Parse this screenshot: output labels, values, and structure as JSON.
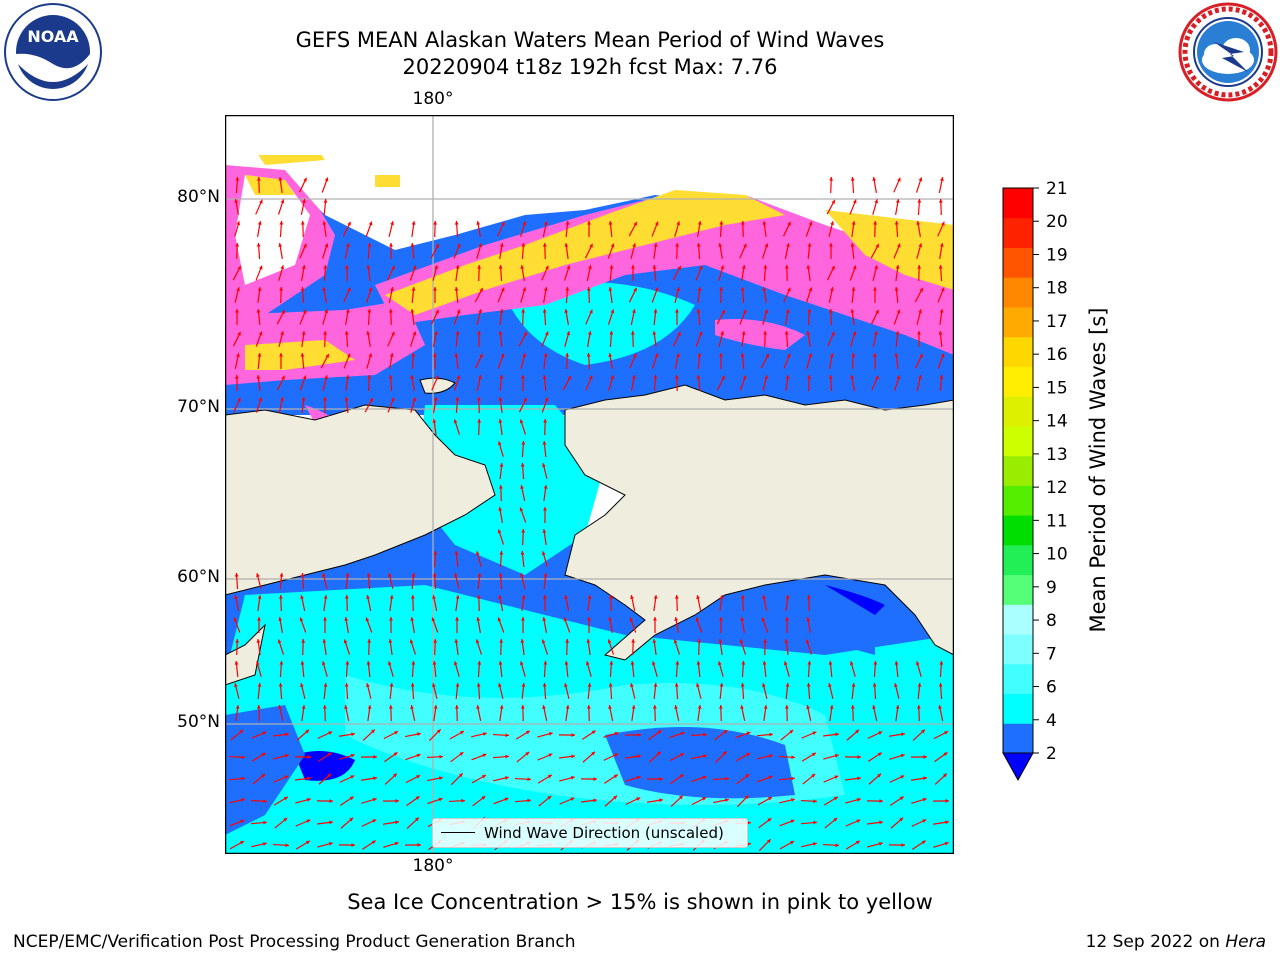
{
  "header": {
    "title_line1": "GEFS MEAN Alaskan Waters Mean Period of Wind Waves",
    "title_line2": "20220904 t18z 192h fcst   Max: 7.76"
  },
  "logos": {
    "left": {
      "icon": "noaa-logo-icon",
      "text": "NOAA"
    },
    "right": {
      "icon": "nws-logo-icon"
    }
  },
  "map": {
    "lat_labels": [
      "80°N",
      "70°N",
      "60°N",
      "50°N"
    ],
    "lon_label_top": "180°",
    "lon_label_bottom": "180°",
    "legend_label": "Wind Wave Direction (unscaled)",
    "colors": {
      "land": "#efedde",
      "coast": "#000000",
      "grid": "#b0b0b0",
      "arrow": "#ff0000"
    }
  },
  "colorbar": {
    "title": "Mean Period of Wind Waves [s]",
    "ticks": [
      "2",
      "4",
      "6",
      "7",
      "8",
      "9",
      "10",
      "11",
      "12",
      "13",
      "14",
      "15",
      "16",
      "17",
      "18",
      "19",
      "20",
      "21"
    ],
    "colors": [
      "#1f6fff",
      "#00ffff",
      "#41ffff",
      "#7dffff",
      "#aaffff",
      "#55ff77",
      "#22ee55",
      "#00dd00",
      "#55ee00",
      "#99ee00",
      "#ccff00",
      "#ddf000",
      "#ffee00",
      "#ffd700",
      "#ffaa00",
      "#ff8800",
      "#ff5500",
      "#ff2200",
      "#ff0000"
    ],
    "under_color": "#0000ff"
  },
  "footer": {
    "subtitle": "Sea Ice Concentration > 15% is shown in pink to yellow",
    "left": "NCEP/EMC/Verification Post Processing Product Generation Branch",
    "date": "12 Sep 2022 on",
    "machine": "Hera"
  }
}
